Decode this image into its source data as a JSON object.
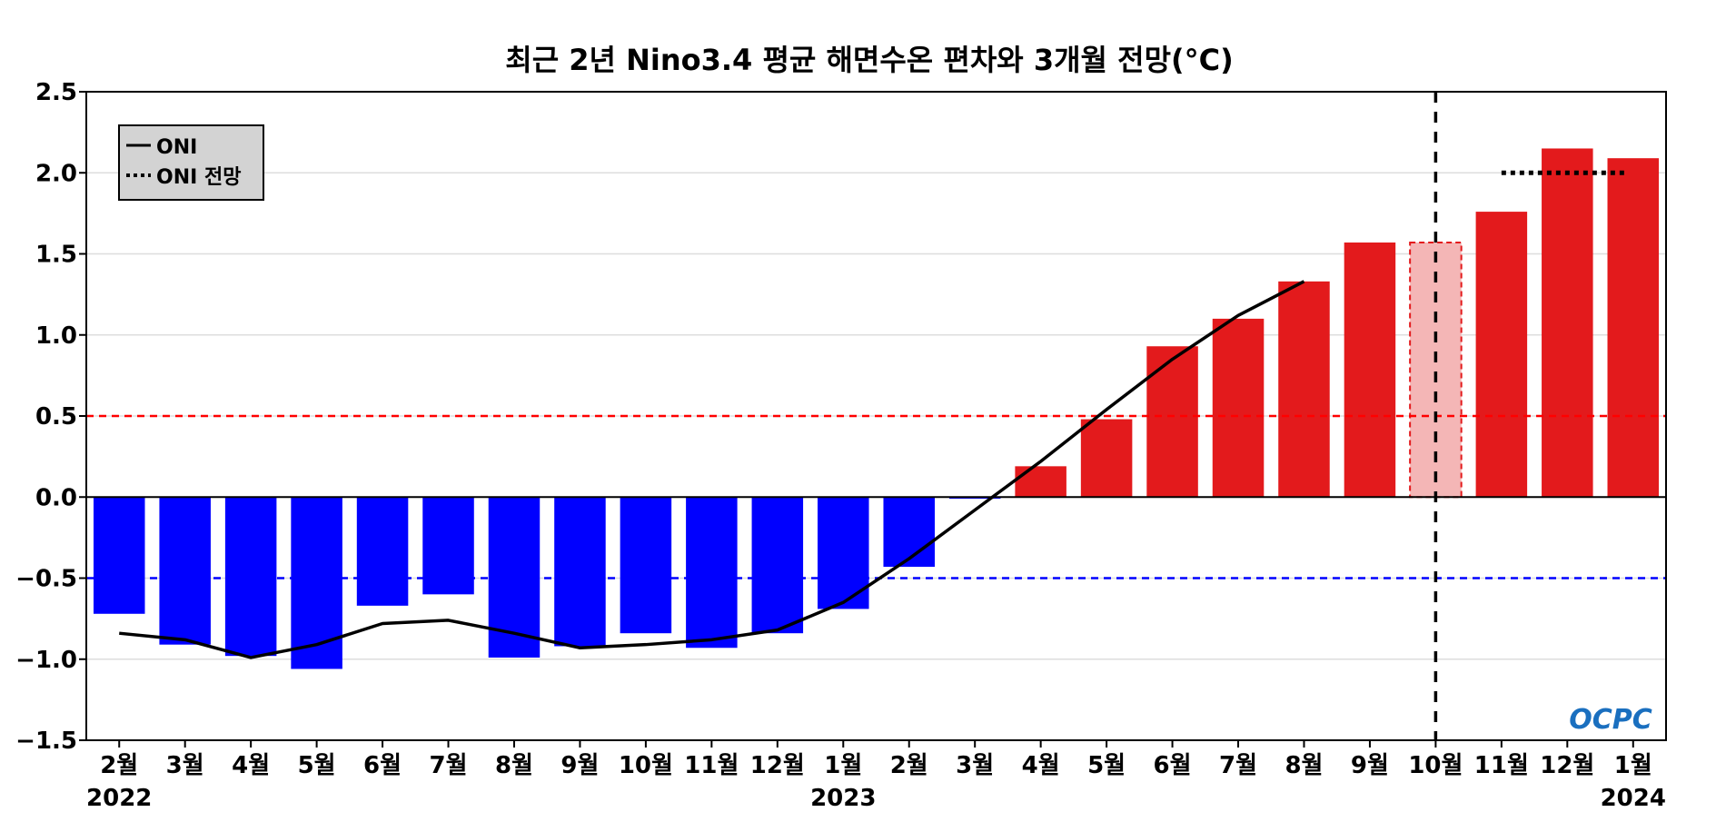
{
  "chart_data": {
    "type": "bar",
    "title": "최근 2년 Nino3.4 평균 해면수온 편차와 3개월 전망(°C)",
    "categories": [
      "2월",
      "3월",
      "4월",
      "5월",
      "6월",
      "7월",
      "8월",
      "9월",
      "10월",
      "11월",
      "12월",
      "1월",
      "2월",
      "3월",
      "4월",
      "5월",
      "6월",
      "7월",
      "8월",
      "9월",
      "10월",
      "11월",
      "12월",
      "1월"
    ],
    "year_labels": [
      {
        "index": 0,
        "label": "2022"
      },
      {
        "index": 11,
        "label": "2023"
      },
      {
        "index": 23,
        "label": "2024"
      }
    ],
    "ylim": [
      -1.5,
      2.5
    ],
    "yticks": [
      -1.5,
      -1.0,
      -0.5,
      0.0,
      0.5,
      1.0,
      1.5,
      2.0,
      2.5
    ],
    "ytick_labels": [
      "−1.5",
      "−1.0",
      "−0.5",
      "0.0",
      "0.5",
      "1.0",
      "1.5",
      "2.0",
      "2.5"
    ],
    "grid": true,
    "bars": [
      -0.72,
      -0.91,
      -0.98,
      -1.06,
      -0.67,
      -0.6,
      -0.99,
      -0.92,
      -0.84,
      -0.93,
      -0.84,
      -0.69,
      -0.43,
      -0.01,
      0.19,
      0.48,
      0.93,
      1.1,
      1.33,
      1.57,
      1.57,
      1.76,
      2.15,
      2.09
    ],
    "forecast_bar_index": 20,
    "series": [
      {
        "name": "ONI",
        "style": "solid",
        "points": [
          [
            0,
            -0.84
          ],
          [
            1,
            -0.88
          ],
          [
            2,
            -0.99
          ],
          [
            3,
            -0.91
          ],
          [
            4,
            -0.78
          ],
          [
            5,
            -0.76
          ],
          [
            6,
            -0.84
          ],
          [
            7,
            -0.93
          ],
          [
            8,
            -0.91
          ],
          [
            9,
            -0.88
          ],
          [
            10,
            -0.82
          ],
          [
            11,
            -0.65
          ],
          [
            12,
            -0.38
          ],
          [
            13,
            -0.08
          ],
          [
            14,
            0.22
          ],
          [
            15,
            0.54
          ],
          [
            16,
            0.85
          ],
          [
            17,
            1.12
          ],
          [
            18,
            1.33
          ]
        ]
      },
      {
        "name": "ONI 전망",
        "style": "dotted",
        "points": [
          [
            21,
            2.0
          ],
          [
            22.9,
            2.0
          ]
        ]
      }
    ],
    "reference_lines": [
      {
        "value": 0.5,
        "color": "#ff0000",
        "style": "dashed"
      },
      {
        "value": -0.5,
        "color": "#0000ff",
        "style": "dashed"
      },
      {
        "value": 0.0,
        "color": "#000000",
        "style": "solid"
      }
    ],
    "forecast_start_index": 20,
    "legend": {
      "position": "top-left",
      "entries": [
        {
          "label": "ONI",
          "style": "solid"
        },
        {
          "label": "ONI 전망",
          "style": "dotted"
        }
      ]
    },
    "colors": {
      "negative_bar": "#0000ff",
      "positive_bar": "#e31a1c",
      "forecast_bar": "#f4b6b6",
      "forecast_bar_edge": "#e31a1c",
      "line": "#000000",
      "grid": "#dddddd",
      "legend_bg": "#d3d3d3",
      "logo": "#1a6fbf"
    },
    "logo_text": "OCPC"
  }
}
